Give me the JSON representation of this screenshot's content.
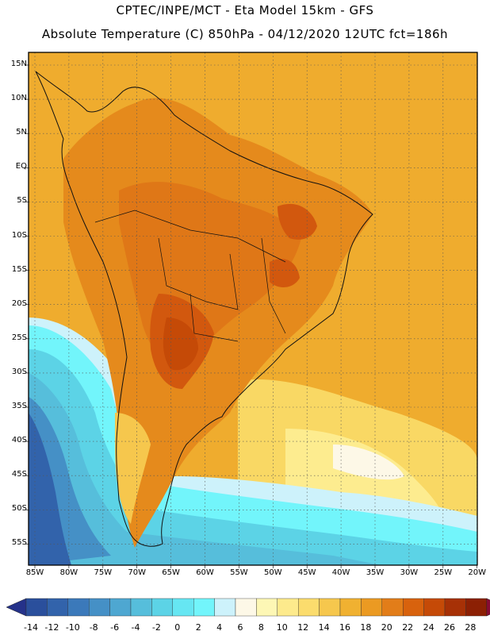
{
  "header": {
    "line1": "CPTEC/INPE/MCT -  Eta Model 15km - GFS",
    "line2": "Absolute Temperature (C) 850hPa - 04/12/2020 12UTC fct=186h"
  },
  "map": {
    "lat_labels": [
      "15N",
      "10N",
      "5N",
      "EQ",
      "5S",
      "10S",
      "15S",
      "20S",
      "25S",
      "30S",
      "35S",
      "40S",
      "45S",
      "50S",
      "55S"
    ],
    "lon_labels": [
      "85W",
      "80W",
      "75W",
      "70W",
      "65W",
      "60W",
      "55W",
      "50W",
      "45W",
      "40W",
      "35W",
      "30W",
      "25W",
      "20W"
    ]
  },
  "colorbar": {
    "labels": [
      "-14",
      "-12",
      "-10",
      "-8",
      "-6",
      "-4",
      "-2",
      "0",
      "2",
      "4",
      "6",
      "8",
      "10",
      "12",
      "14",
      "16",
      "18",
      "20",
      "22",
      "24",
      "26",
      "28"
    ],
    "colors": [
      "#2a4f9c",
      "#3263ab",
      "#3b79ba",
      "#4590c6",
      "#4ea7d1",
      "#56bedb",
      "#5cd3e6",
      "#66e6f2",
      "#72f5fb",
      "#cdf2fb",
      "#fdf8e7",
      "#fdf7b5",
      "#fdea8c",
      "#fbdc6d",
      "#f6c74d",
      "#f0b131",
      "#eb9a22",
      "#e27d19",
      "#d8620d",
      "#c54a07",
      "#a73106",
      "#8c2004"
    ],
    "left_arrow_color": "#25328a",
    "right_arrow_color": "#870c34"
  }
}
